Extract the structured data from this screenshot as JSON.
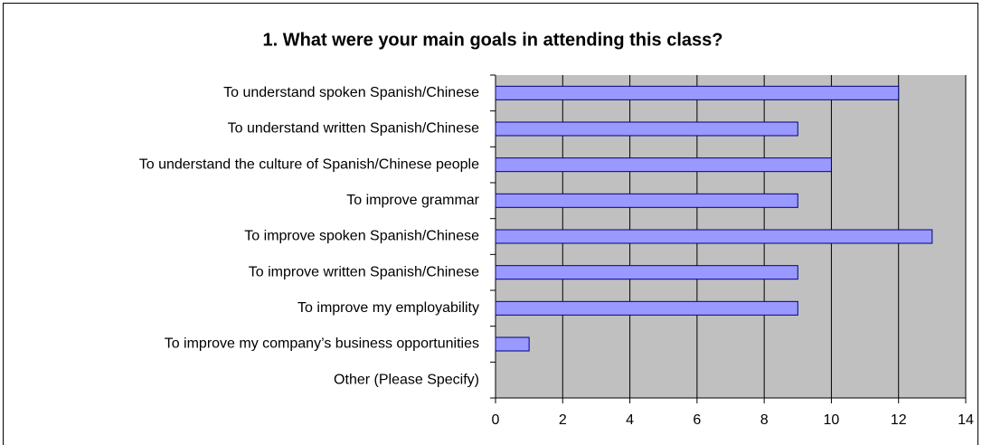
{
  "chart_data": {
    "type": "bar",
    "orientation": "horizontal",
    "title": "1. What were your main goals in attending this class?",
    "categories": [
      "To understand spoken Spanish/Chinese",
      "To understand written Spanish/Chinese",
      "To understand the culture of Spanish/Chinese people",
      "To improve grammar",
      "To improve spoken Spanish/Chinese",
      "To improve written Spanish/Chinese",
      "To improve my employability",
      "To improve my company’s business opportunities",
      "Other (Please Specify)"
    ],
    "values": [
      12,
      9,
      10,
      9,
      13,
      9,
      9,
      1,
      0
    ],
    "color": "#9999ff",
    "xlim": [
      0,
      14
    ],
    "xticks": [
      0,
      2,
      4,
      6,
      8,
      10,
      12,
      14
    ],
    "grid": true
  }
}
